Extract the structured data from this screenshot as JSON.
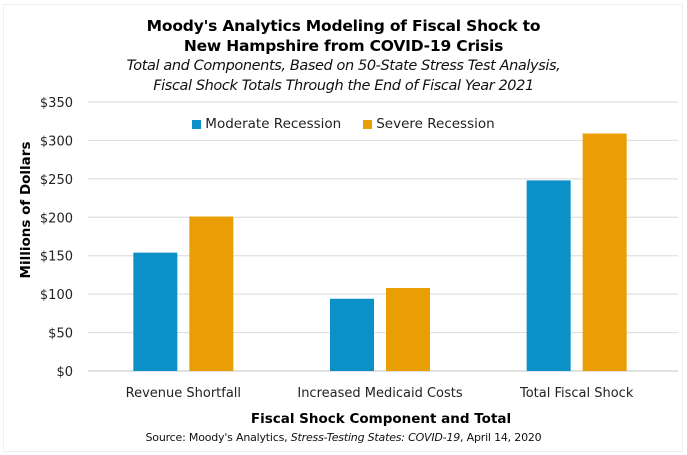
{
  "chart_data": {
    "type": "bar",
    "title": "Moody's Analytics Modeling of Fiscal Shock to New Hampshire from COVID-19 Crisis",
    "title_lines": [
      "Moody's Analytics Modeling of Fiscal Shock to",
      "New Hampshire from COVID-19 Crisis"
    ],
    "subtitle_lines": [
      "Total and Components, Based on 50-State Stress Test Analysis,",
      "Fiscal Shock Totals Through the End of Fiscal Year 2021"
    ],
    "categories": [
      "Revenue Shortfall",
      "Increased Medicaid Costs",
      "Total Fiscal Shock"
    ],
    "series": [
      {
        "name": "Moderate Recession",
        "color": "#0B91C8",
        "values": [
          154,
          94,
          248
        ]
      },
      {
        "name": "Severe Recession",
        "color": "#E89E04",
        "values": [
          201,
          108,
          309
        ]
      }
    ],
    "xlabel": "Fiscal Shock Component and Total",
    "ylabel": "Millions of Dollars",
    "ylim": [
      0,
      350
    ],
    "yticks": [
      0,
      50,
      100,
      150,
      200,
      250,
      300,
      350
    ],
    "ytick_labels": [
      "$0",
      "$50",
      "$100",
      "$150",
      "$200",
      "$250",
      "$300",
      "$350"
    ],
    "grid": true,
    "legend_position": "top-center",
    "source": {
      "prefix": "Source: Moody's Analytics, ",
      "italic": "Stress-Testing States: COVID-19",
      "suffix": ", April 14, 2020"
    }
  }
}
